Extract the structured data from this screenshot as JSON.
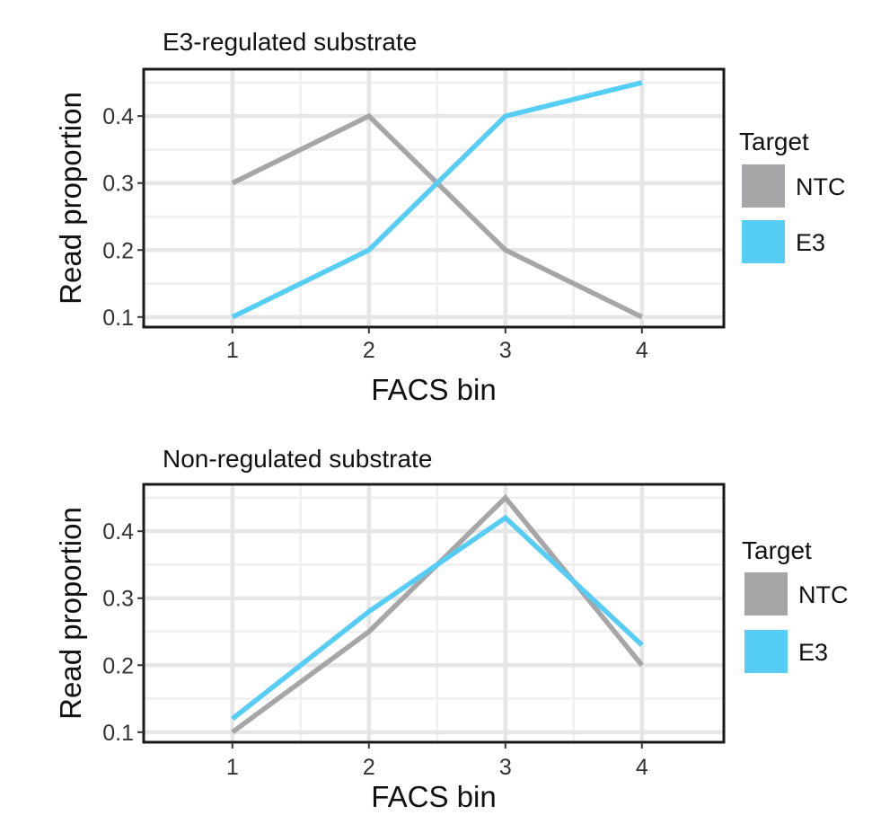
{
  "chart_data": [
    {
      "type": "line",
      "title": "E3-regulated substrate",
      "xlabel": "FACS bin",
      "ylabel": "Read proportion",
      "x": [
        1,
        2,
        3,
        4
      ],
      "ylim": [
        0.085,
        0.47
      ],
      "yticks": [
        0.1,
        0.2,
        0.3,
        0.4
      ],
      "ytick_labels": [
        "0.1",
        "0.2",
        "0.3",
        "0.4"
      ],
      "grid": true,
      "legend": {
        "title": "Target",
        "position": "right"
      },
      "series": [
        {
          "name": "NTC",
          "color": "#a6a6a8",
          "values": [
            0.3,
            0.4,
            0.2,
            0.1
          ]
        },
        {
          "name": "E3",
          "color": "#55cdf5",
          "values": [
            0.1,
            0.2,
            0.4,
            0.45
          ]
        }
      ]
    },
    {
      "type": "line",
      "title": "Non-regulated substrate",
      "xlabel": "FACS bin",
      "ylabel": "Read proportion",
      "x": [
        1,
        2,
        3,
        4
      ],
      "ylim": [
        0.085,
        0.47
      ],
      "yticks": [
        0.1,
        0.2,
        0.3,
        0.4
      ],
      "ytick_labels": [
        "0.1",
        "0.2",
        "0.3",
        "0.4"
      ],
      "grid": true,
      "legend": {
        "title": "Target",
        "position": "right"
      },
      "series": [
        {
          "name": "NTC",
          "color": "#a6a6a8",
          "values": [
            0.1,
            0.25,
            0.45,
            0.2
          ]
        },
        {
          "name": "E3",
          "color": "#55cdf5",
          "values": [
            0.12,
            0.28,
            0.42,
            0.23
          ]
        }
      ]
    }
  ]
}
